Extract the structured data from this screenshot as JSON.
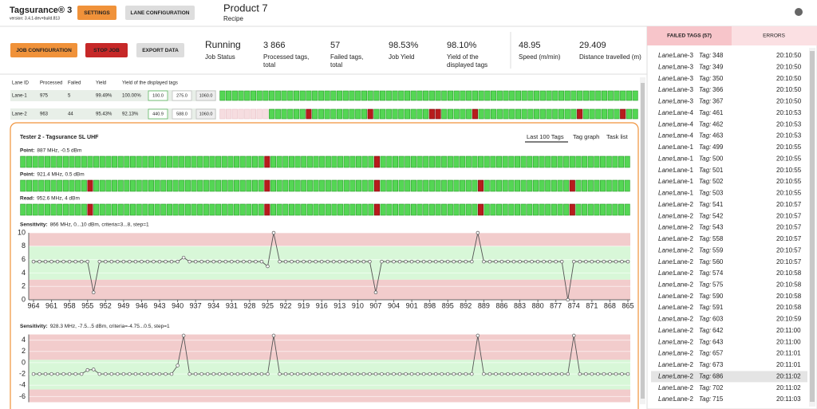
{
  "header": {
    "app_title": "Tagsurance® 3",
    "version": "version: 3.4.1-dev+build.813",
    "buttons": [
      "SETTINGS",
      "LANE CONFIGURATION"
    ],
    "product": "Product 7",
    "product_sub": "Recipe"
  },
  "toolbar": {
    "buttons": [
      "JOB CONFIGURATION",
      "STOP JOB",
      "EXPORT DATA"
    ],
    "stats": [
      {
        "value": "Running",
        "label": [
          "Job Status"
        ]
      },
      {
        "value": "3 866",
        "label": [
          "Processed tags,",
          "total"
        ]
      },
      {
        "value": "57",
        "label": [
          "Failed tags,",
          "total"
        ]
      },
      {
        "value": "98.53%",
        "label": [
          "Job Yield"
        ]
      },
      {
        "value": "98.10%",
        "label": [
          "Yield of the",
          "displayed tags"
        ]
      },
      {
        "value": "48.95",
        "label": [
          "Speed (m/min)"
        ]
      },
      {
        "value": "29.409",
        "label": [
          "Distance travelled (m)"
        ]
      }
    ]
  },
  "lanes": {
    "headers": [
      "Lane ID",
      "Processed",
      "Failed",
      "Yield",
      "Yield of the displayed tags"
    ],
    "rows": [
      {
        "cells": [
          "Lane-1",
          "975",
          "5",
          "99.49%",
          "100.00%"
        ],
        "inputs": [
          "100.0",
          "275.0",
          "1060.0"
        ],
        "strip_cells": 68,
        "failed": [],
        "pending_cells": 0
      },
      {
        "cells": [
          "Lane-2",
          "963",
          "44",
          "95.43%",
          "92.13%"
        ],
        "inputs": [
          "440.9",
          "588.0",
          "1060.0"
        ],
        "strip_cells": 68,
        "failed": [
          14,
          24,
          34,
          35,
          41,
          58,
          65
        ],
        "pending_cells": 8
      }
    ]
  },
  "tester": {
    "title": "Tester 2 - Tagsurance SL UHF",
    "tabs": [
      "Last 100 Tags",
      "Tag graph",
      "Task list"
    ],
    "rows": [
      {
        "label": "Point:",
        "text": "887 MHz, -0.5 dBm",
        "strip_cells": 100,
        "failed": [
          40,
          58
        ]
      },
      {
        "label": "Point:",
        "text": "921.4 MHz, 0.5 dBm",
        "strip_cells": 100,
        "failed": [
          11,
          40,
          58,
          75,
          90
        ]
      },
      {
        "label": "Read:",
        "text": "952.6 MHz, 4 dBm",
        "strip_cells": 100,
        "failed": [
          11,
          40,
          58,
          75,
          90
        ]
      }
    ]
  },
  "chart_data": [
    {
      "type": "line",
      "label": "Sensitivity:",
      "title": "866 MHz, 0...10 dBm, criteria=3...8, step=1",
      "criteria": [
        3,
        8
      ],
      "ylim": [
        0,
        10
      ],
      "yticks": [
        0,
        2,
        4,
        6,
        8,
        10
      ],
      "xlim": [
        964,
        865
      ],
      "xticks": [
        964,
        961,
        958,
        955,
        952,
        949,
        946,
        943,
        940,
        937,
        934,
        931,
        928,
        925,
        922,
        919,
        916,
        913,
        910,
        907,
        904,
        901,
        898,
        895,
        892,
        889,
        886,
        883,
        880,
        877,
        874,
        871,
        868,
        865
      ],
      "x": [
        964,
        963,
        962,
        961,
        960,
        959,
        958,
        957,
        956,
        955,
        954,
        953,
        952,
        951,
        950,
        949,
        948,
        947,
        946,
        945,
        944,
        943,
        942,
        941,
        940,
        939,
        938,
        937,
        936,
        935,
        934,
        933,
        932,
        931,
        930,
        929,
        928,
        927,
        926,
        925,
        924,
        923,
        922,
        921,
        920,
        919,
        918,
        917,
        916,
        915,
        914,
        913,
        912,
        911,
        910,
        909,
        908,
        907,
        906,
        905,
        904,
        903,
        902,
        901,
        900,
        899,
        898,
        897,
        896,
        895,
        894,
        893,
        892,
        891,
        890,
        889,
        888,
        887,
        886,
        885,
        884,
        883,
        882,
        881,
        880,
        879,
        878,
        877,
        876,
        875,
        874,
        873,
        872,
        871,
        870,
        869,
        868,
        867,
        866,
        865
      ],
      "series": [
        {
          "color": "#555555",
          "values": [
            5.7,
            5.7,
            5.7,
            5.7,
            5.7,
            5.7,
            5.7,
            5.7,
            5.7,
            5.7,
            1.1,
            5.7,
            5.7,
            5.7,
            5.7,
            5.7,
            5.7,
            5.7,
            5.7,
            5.7,
            5.7,
            5.7,
            5.7,
            5.7,
            5.7,
            6.3,
            5.7,
            5.7,
            5.7,
            5.7,
            5.7,
            5.7,
            5.7,
            5.7,
            5.7,
            5.7,
            5.7,
            5.7,
            5.7,
            5,
            10,
            5.7,
            5.7,
            5.7,
            5.7,
            5.7,
            5.7,
            5.7,
            5.7,
            5.7,
            5.7,
            5.7,
            5.7,
            5.7,
            5.7,
            5.7,
            5.7,
            1.1,
            5.7,
            5.7,
            5.7,
            5.7,
            5.7,
            5.7,
            5.7,
            5.7,
            5.7,
            5.7,
            5.7,
            5.7,
            5.7,
            5.7,
            5.7,
            5.7,
            10,
            5.7,
            5.7,
            5.7,
            5.7,
            5.7,
            5.7,
            5.7,
            5.7,
            5.7,
            5.7,
            5.7,
            5.7,
            5.7,
            5.7,
            0,
            5.7,
            5.7,
            5.7,
            5.7,
            5.7,
            5.7,
            5.7,
            5.7,
            5.7,
            5.7
          ]
        }
      ]
    },
    {
      "type": "line",
      "label": "Sensitivity:",
      "title": "928.3 MHz, -7.5...5 dBm, criteria=-4.75...0.5, step=1",
      "criteria": [
        -4.75,
        0.5
      ],
      "ylim": [
        -7,
        5
      ],
      "yticks": [
        -6,
        -4,
        -2,
        0,
        2,
        4
      ],
      "xlim": [
        964,
        865
      ],
      "x": [
        964,
        963,
        962,
        961,
        960,
        959,
        958,
        957,
        956,
        955,
        954,
        953,
        952,
        951,
        950,
        949,
        948,
        947,
        946,
        945,
        944,
        943,
        942,
        941,
        940,
        939,
        938,
        937,
        936,
        935,
        934,
        933,
        932,
        931,
        930,
        929,
        928,
        927,
        926,
        925,
        924,
        923,
        922,
        921,
        920,
        919,
        918,
        917,
        916,
        915,
        914,
        913,
        912,
        911,
        910,
        909,
        908,
        907,
        906,
        905,
        904,
        903,
        902,
        901,
        900,
        899,
        898,
        897,
        896,
        895,
        894,
        893,
        892,
        891,
        890,
        889,
        888,
        887,
        886,
        885,
        884,
        883,
        882,
        881,
        880,
        879,
        878,
        877,
        876,
        875,
        874,
        873,
        872,
        871,
        870,
        869,
        868,
        867,
        866,
        865
      ],
      "series": [
        {
          "color": "#555555",
          "values": [
            -2,
            -2,
            -2,
            -2,
            -2,
            -2,
            -2,
            -2,
            -2,
            -1.3,
            -1.2,
            -2,
            -2,
            -2,
            -2,
            -2,
            -2,
            -2,
            -2,
            -2,
            -2,
            -2,
            -2,
            -2,
            -0.5,
            4.8,
            -2,
            -2,
            -2,
            -2,
            -2,
            -2,
            -2,
            -2,
            -2,
            -2,
            -2,
            -2,
            -2,
            -2,
            4.8,
            -2,
            -2,
            -2,
            -2,
            -2,
            -2,
            -2,
            -2,
            -2,
            -2,
            -2,
            -2,
            -2,
            -2,
            -2,
            -2,
            -2,
            -2,
            -2,
            -2,
            -2,
            -2,
            -2,
            -2,
            -2,
            -2,
            -2,
            -2,
            -2,
            -2,
            -2,
            -2,
            -2,
            4.8,
            -2,
            -2,
            -2,
            -2,
            -2,
            -2,
            -2,
            -2,
            -2,
            -2,
            -2,
            -2,
            -2,
            -2,
            -2,
            4.8,
            -2,
            -2,
            -2,
            -2,
            -2,
            -2,
            -2,
            -2,
            -2
          ]
        }
      ]
    }
  ],
  "failed_panel": {
    "tabs": [
      "FAILED TAGS (57)",
      "ERRORS"
    ],
    "lane_label": "Lane:",
    "tag_label": "Tag:",
    "selected": 28,
    "rows": [
      [
        "Lane-3",
        "348",
        "20:10:50"
      ],
      [
        "Lane-3",
        "349",
        "20:10:50"
      ],
      [
        "Lane-3",
        "350",
        "20:10:50"
      ],
      [
        "Lane-3",
        "366",
        "20:10:50"
      ],
      [
        "Lane-3",
        "367",
        "20:10:50"
      ],
      [
        "Lane-4",
        "461",
        "20:10:53"
      ],
      [
        "Lane-4",
        "462",
        "20:10:53"
      ],
      [
        "Lane-4",
        "463",
        "20:10:53"
      ],
      [
        "Lane-1",
        "499",
        "20:10:55"
      ],
      [
        "Lane-1",
        "500",
        "20:10:55"
      ],
      [
        "Lane-1",
        "501",
        "20:10:55"
      ],
      [
        "Lane-1",
        "502",
        "20:10:55"
      ],
      [
        "Lane-1",
        "503",
        "20:10:55"
      ],
      [
        "Lane-2",
        "541",
        "20:10:57"
      ],
      [
        "Lane-2",
        "542",
        "20:10:57"
      ],
      [
        "Lane-2",
        "543",
        "20:10:57"
      ],
      [
        "Lane-2",
        "558",
        "20:10:57"
      ],
      [
        "Lane-2",
        "559",
        "20:10:57"
      ],
      [
        "Lane-2",
        "560",
        "20:10:57"
      ],
      [
        "Lane-2",
        "574",
        "20:10:58"
      ],
      [
        "Lane-2",
        "575",
        "20:10:58"
      ],
      [
        "Lane-2",
        "590",
        "20:10:58"
      ],
      [
        "Lane-2",
        "591",
        "20:10:58"
      ],
      [
        "Lane-2",
        "603",
        "20:10:59"
      ],
      [
        "Lane-2",
        "642",
        "20:11:00"
      ],
      [
        "Lane-2",
        "643",
        "20:11:00"
      ],
      [
        "Lane-2",
        "657",
        "20:11:01"
      ],
      [
        "Lane-2",
        "673",
        "20:11:01"
      ],
      [
        "Lane-2",
        "686",
        "20:11:02"
      ],
      [
        "Lane-2",
        "702",
        "20:11:02"
      ],
      [
        "Lane-2",
        "715",
        "20:11:03"
      ]
    ]
  }
}
